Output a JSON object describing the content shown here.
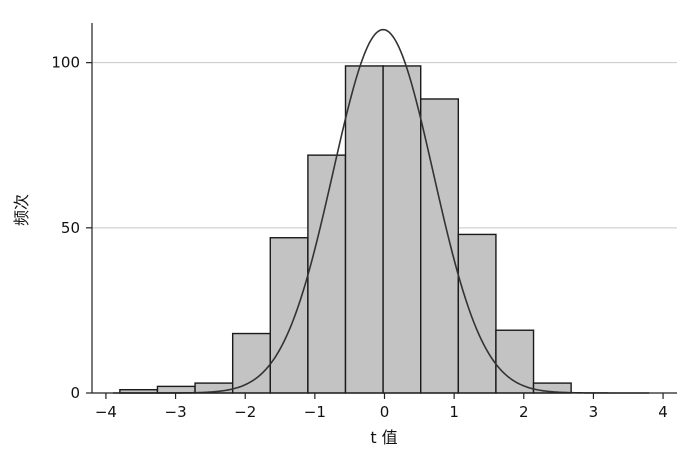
{
  "chart_data": {
    "type": "bar",
    "title": "",
    "xlabel": "t 值",
    "ylabel": "频次",
    "xlim": [
      -4.2,
      4.2
    ],
    "ylim": [
      0,
      112
    ],
    "xticks": [
      -4,
      -3,
      -2,
      -1,
      0,
      1,
      2,
      3,
      4
    ],
    "xtick_labels": [
      "−4",
      "−3",
      "−2",
      "−1",
      "0",
      "1",
      "2",
      "3",
      "4"
    ],
    "yticks": [
      0,
      50,
      100
    ],
    "ytick_labels": [
      "0",
      "50",
      "100"
    ],
    "grid": "horizontal",
    "bins": [
      {
        "x0": -3.8,
        "x1": -3.26,
        "value": 1
      },
      {
        "x0": -3.26,
        "x1": -2.72,
        "value": 2
      },
      {
        "x0": -2.72,
        "x1": -2.18,
        "value": 3
      },
      {
        "x0": -2.18,
        "x1": -1.64,
        "value": 18
      },
      {
        "x0": -1.64,
        "x1": -1.1,
        "value": 47
      },
      {
        "x0": -1.1,
        "x1": -0.56,
        "value": 72
      },
      {
        "x0": -0.56,
        "x1": -0.02,
        "value": 99
      },
      {
        "x0": -0.02,
        "x1": 0.52,
        "value": 99
      },
      {
        "x0": 0.52,
        "x1": 1.06,
        "value": 89
      },
      {
        "x0": 1.06,
        "x1": 1.6,
        "value": 48
      },
      {
        "x0": 1.6,
        "x1": 2.14,
        "value": 19
      },
      {
        "x0": 2.14,
        "x1": 2.68,
        "value": 3
      }
    ],
    "normal_curve": {
      "mean": -0.02,
      "sd": 0.72,
      "peak": 110
    },
    "colors": {
      "bar_fill": "#c3c3c3",
      "bar_edge": "#1a1a1a",
      "curve": "#333333",
      "grid": "#c8c8c8",
      "axis": "#222222"
    }
  }
}
